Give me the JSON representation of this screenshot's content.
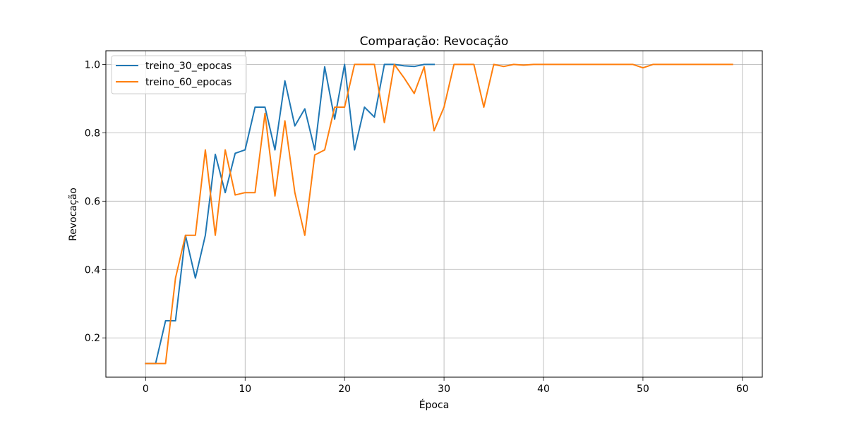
{
  "chart_data": {
    "type": "line",
    "title": "Comparação: Revocação",
    "xlabel": "Época",
    "ylabel": "Revocação",
    "xlim": [
      -4.0,
      62.0
    ],
    "ylim": [
      0.085,
      1.04
    ],
    "xticks": [
      0,
      10,
      20,
      30,
      40,
      50,
      60
    ],
    "yticks": [
      0.2,
      0.4,
      0.6,
      0.8,
      1.0
    ],
    "ytick_labels": [
      "0.2",
      "0.4",
      "0.6",
      "0.8",
      "1.0"
    ],
    "grid": true,
    "legend_position": "top-left",
    "series": [
      {
        "name": "treino_30_epocas",
        "color": "#1f77b4",
        "x": [
          0,
          1,
          2,
          3,
          4,
          5,
          6,
          7,
          8,
          9,
          10,
          11,
          12,
          13,
          14,
          15,
          16,
          17,
          18,
          19,
          20,
          21,
          22,
          23,
          24,
          25,
          26,
          27,
          28,
          29
        ],
        "y": [
          0.125,
          0.125,
          0.25,
          0.25,
          0.5,
          0.375,
          0.5,
          0.737,
          0.625,
          0.74,
          0.75,
          0.875,
          0.875,
          0.75,
          0.952,
          0.82,
          0.87,
          0.75,
          0.993,
          0.84,
          1.0,
          0.75,
          0.875,
          0.846,
          1.0,
          1.0,
          0.996,
          0.994,
          1.0,
          1.0
        ]
      },
      {
        "name": "treino_60_epocas",
        "color": "#ff7f0e",
        "x": [
          0,
          1,
          2,
          3,
          4,
          5,
          6,
          7,
          8,
          9,
          10,
          11,
          12,
          13,
          14,
          15,
          16,
          17,
          18,
          19,
          20,
          21,
          22,
          23,
          24,
          25,
          26,
          27,
          28,
          29,
          30,
          31,
          32,
          33,
          34,
          35,
          36,
          37,
          38,
          39,
          40,
          41,
          42,
          43,
          44,
          45,
          46,
          47,
          48,
          49,
          50,
          51,
          52,
          53,
          54,
          55,
          56,
          57,
          58,
          59
        ],
        "y": [
          0.125,
          0.125,
          0.125,
          0.375,
          0.5,
          0.5,
          0.75,
          0.5,
          0.75,
          0.618,
          0.625,
          0.625,
          0.857,
          0.615,
          0.835,
          0.625,
          0.5,
          0.735,
          0.75,
          0.875,
          0.875,
          1.0,
          1.0,
          1.0,
          0.83,
          1.0,
          0.96,
          0.915,
          0.993,
          0.806,
          0.875,
          1.0,
          1.0,
          1.0,
          0.875,
          1.0,
          0.994,
          1.0,
          0.998,
          1.0,
          1.0,
          1.0,
          1.0,
          1.0,
          1.0,
          1.0,
          1.0,
          1.0,
          1.0,
          1.0,
          0.99,
          1.0,
          1.0,
          1.0,
          1.0,
          1.0,
          1.0,
          1.0,
          1.0,
          1.0
        ]
      }
    ]
  }
}
